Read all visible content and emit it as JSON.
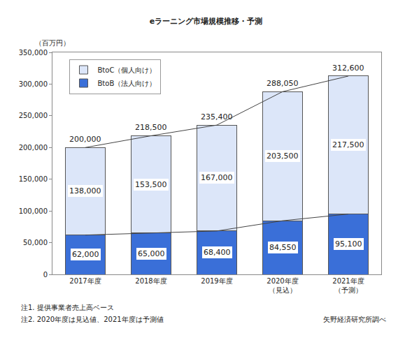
{
  "chart_data": {
    "type": "bar",
    "stacked": true,
    "title": "eラーニング市場規模推移・予測",
    "y_label": "（百万円）",
    "categories": [
      "2017年度",
      "2018年度",
      "2019年度",
      "2020年度\n（見込）",
      "2021年度\n（予測）"
    ],
    "series": [
      {
        "name": "BtoB（法人向け）",
        "color": "#3a6fd8",
        "values": [
          62000,
          65000,
          68400,
          84550,
          95100
        ],
        "value_labels": [
          "62,000",
          "65,000",
          "68,400",
          "84,550",
          "95,100"
        ]
      },
      {
        "name": "BtoC（個人向け）",
        "color": "#dce6f9",
        "values": [
          138000,
          153500,
          167000,
          203500,
          217500
        ],
        "value_labels": [
          "138,000",
          "153,500",
          "167,000",
          "203,500",
          "217,500"
        ]
      }
    ],
    "totals": [
      200000,
      218500,
      235400,
      288050,
      312600
    ],
    "total_labels": [
      "200,000",
      "218,500",
      "235,400",
      "288,050",
      "312,600"
    ],
    "ylim": [
      0,
      350000
    ],
    "yticks": [
      0,
      {
        "value": 50000,
        "label": "50,000"
      },
      {
        "value": 100000,
        "label": "100,000"
      },
      {
        "value": 150000,
        "label": "150,000"
      },
      {
        "value": 200000,
        "label": "200,000"
      },
      {
        "value": 250000,
        "label": "250,000"
      },
      {
        "value": 300000,
        "label": "300,000"
      },
      {
        "value": 350000,
        "label": "350,000"
      }
    ],
    "grid": false,
    "legend": "upper left",
    "data_labels": true,
    "notes": [
      "注1. 提供事業者売上高ベース",
      "注2. 2020年度は見込値、2021年度は予測値"
    ],
    "source": "矢野経済研究所調べ"
  }
}
